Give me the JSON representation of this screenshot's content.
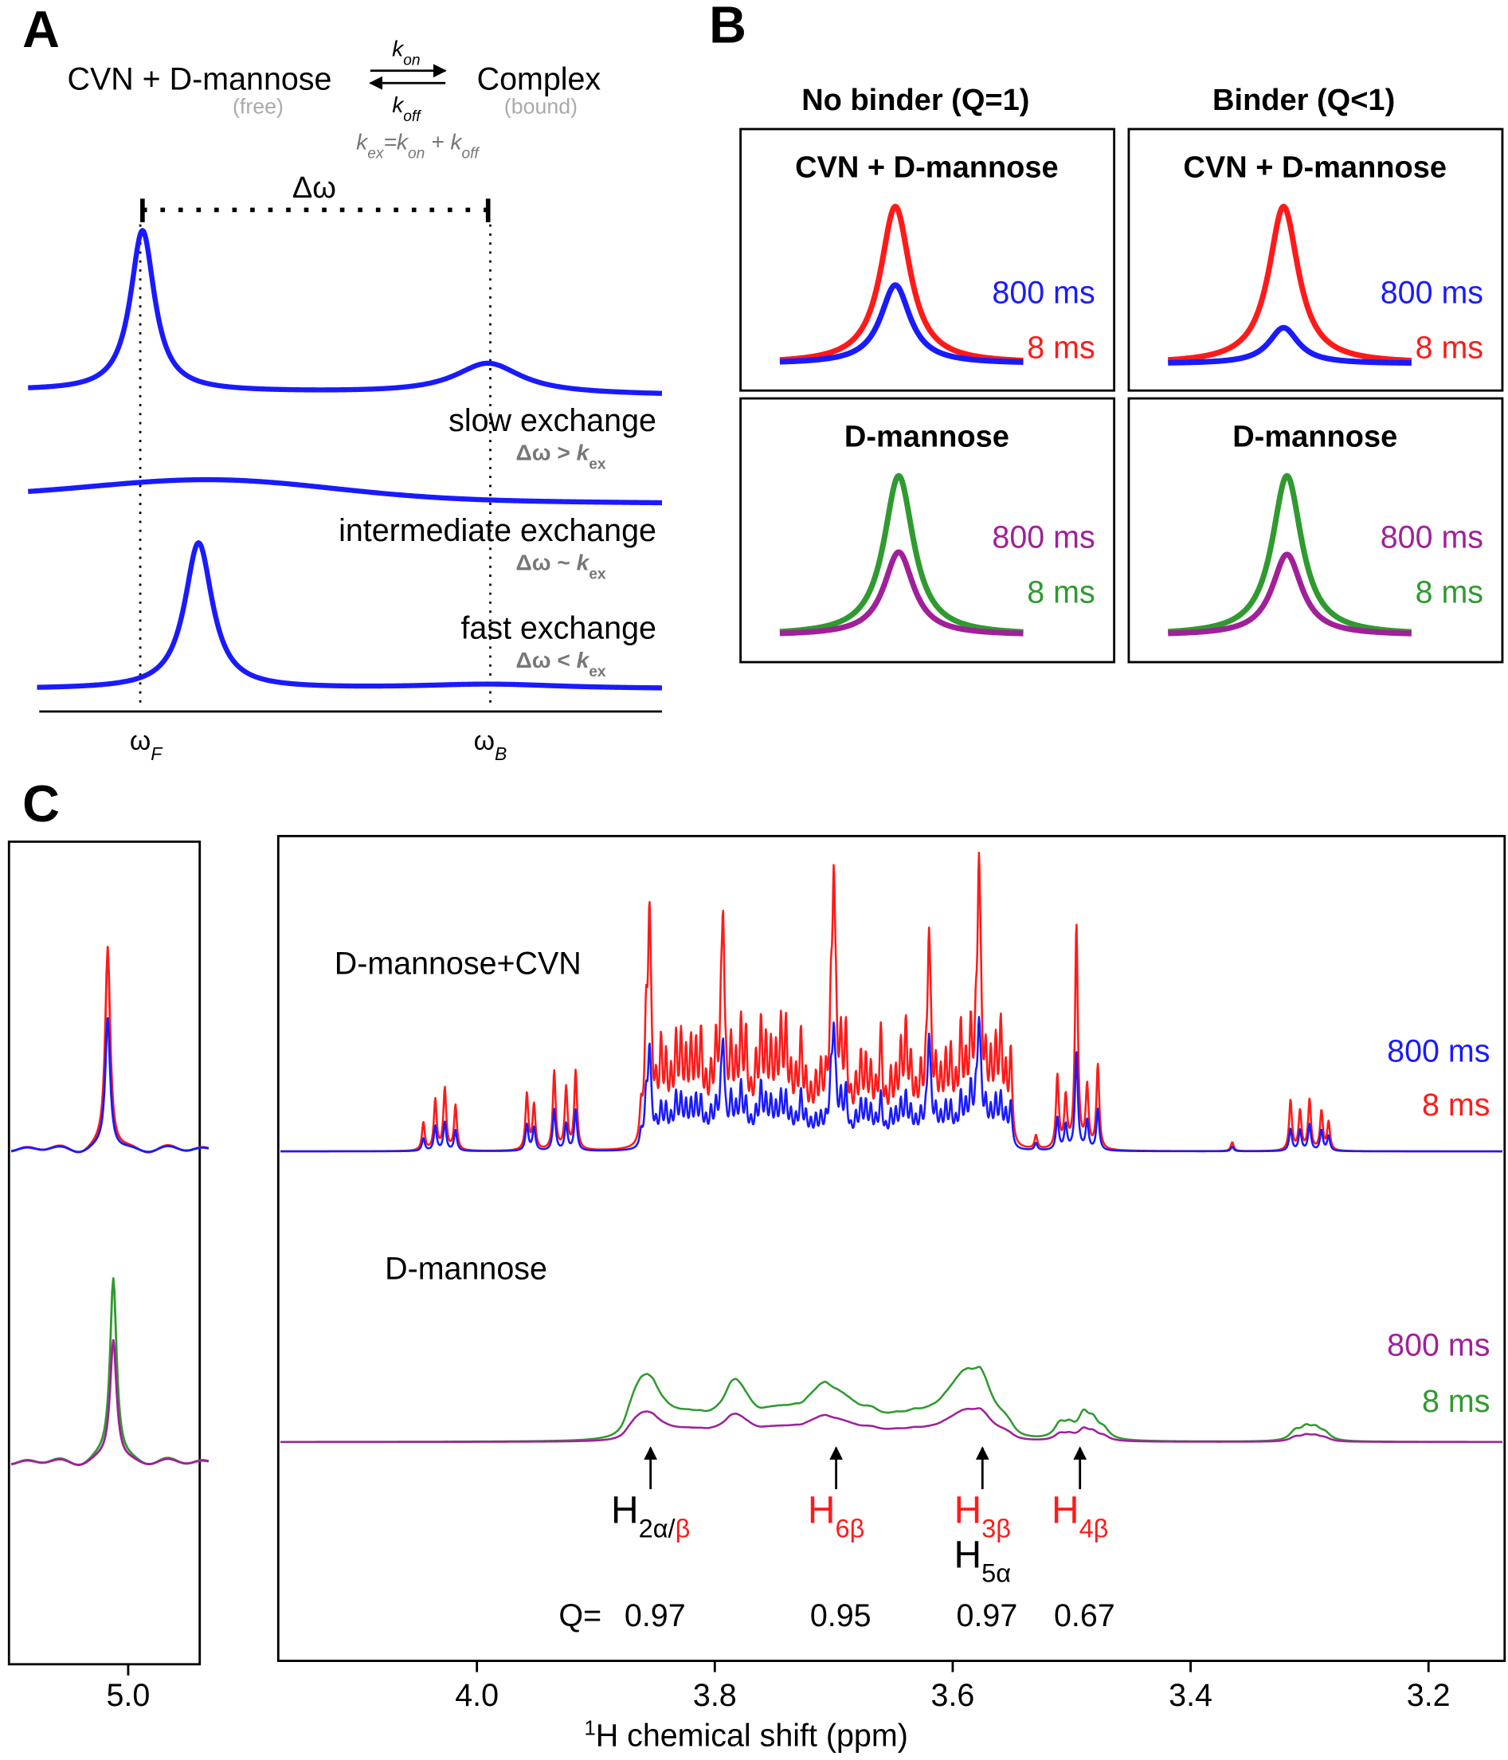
{
  "panel_a": {
    "label": "A",
    "reactant": "CVN + D-mannose",
    "reactant_state": "(free)",
    "product": "Complex",
    "product_state": "(bound)",
    "k_on": [
      "k",
      "on"
    ],
    "k_off": [
      "k",
      "off"
    ],
    "k_ex": [
      "k",
      "ex",
      "=",
      "k",
      "on",
      " + ",
      "k",
      "off"
    ],
    "delta": "Δω",
    "regimes": [
      {
        "name": "slow exchange",
        "cond": [
          "Δω > ",
          "k",
          "ex"
        ]
      },
      {
        "name": "intermediate exchange",
        "cond": [
          "Δω ~ ",
          "k",
          "ex"
        ]
      },
      {
        "name": "fast exchange",
        "cond": [
          "Δω < ",
          "k",
          "ex"
        ]
      }
    ],
    "omega_f": [
      "ω",
      "F"
    ],
    "omega_b": [
      "ω",
      "B"
    ]
  },
  "panel_b": {
    "label": "B",
    "columns": [
      {
        "title": "No binder (Q=1)",
        "boxes": [
          {
            "title": "CVN + D-mannose",
            "legend": [
              {
                "text": "800 ms",
                "color": "#1a1aff"
              },
              {
                "text": "8 ms",
                "color": "#ff1a1a"
              }
            ]
          },
          {
            "title": "D-mannose",
            "legend": [
              {
                "text": "800 ms",
                "color": "#a0209a"
              },
              {
                "text": "8 ms",
                "color": "#2f9a2f"
              }
            ]
          }
        ]
      },
      {
        "title": "Binder (Q<1)",
        "boxes": [
          {
            "title": "CVN + D-mannose",
            "legend": [
              {
                "text": "800 ms",
                "color": "#1a1aff"
              },
              {
                "text": "8 ms",
                "color": "#ff1a1a"
              }
            ]
          },
          {
            "title": "D-mannose",
            "legend": [
              {
                "text": "800 ms",
                "color": "#a0209a"
              },
              {
                "text": "8 ms",
                "color": "#2f9a2f"
              }
            ]
          }
        ]
      }
    ]
  },
  "panel_c": {
    "label": "C",
    "traces": [
      {
        "name": "D-mannose+CVN",
        "legend": [
          {
            "text": "800 ms",
            "color": "#1a1aff"
          },
          {
            "text": "8 ms",
            "color": "#ff1a1a"
          }
        ]
      },
      {
        "name": "D-mannose",
        "legend": [
          {
            "text": "800 ms",
            "color": "#a0209a"
          },
          {
            "text": "8 ms",
            "color": "#2f9a2f"
          }
        ]
      }
    ],
    "peaks": [
      {
        "shift": 3.854,
        "q": 0.97,
        "color": "#000000",
        "label": [
          {
            "text": "H"
          },
          {
            "text": "2α/",
            "sub": true
          },
          {
            "text": "β",
            "sub": true,
            "color": "#ff1a1a"
          }
        ]
      },
      {
        "shift": 3.698,
        "q": 0.95,
        "color": "#ff1a1a",
        "label": [
          {
            "text": "H"
          },
          {
            "text": "6β",
            "sub": true
          }
        ]
      },
      {
        "shift": 3.575,
        "q": 0.97,
        "color": "#ff1a1a",
        "label": [
          {
            "text": "H"
          },
          {
            "text": "3β",
            "sub": true
          }
        ],
        "extra": [
          {
            "text": "H"
          },
          {
            "text": "5α",
            "sub": true
          }
        ]
      },
      {
        "shift": 3.493,
        "q": 0.67,
        "color": "#ff1a1a",
        "label": [
          {
            "text": "H"
          },
          {
            "text": "4β",
            "sub": true
          }
        ]
      }
    ],
    "q_prefix": "Q=",
    "xlim": [
      4.167,
      3.136
    ],
    "xticks": [
      {
        "value": 4,
        "label": "4.0"
      },
      {
        "value": 3.8,
        "label": "3.8"
      },
      {
        "value": 3.6,
        "label": "3.6"
      },
      {
        "value": 3.4,
        "label": "3.4"
      },
      {
        "value": 3.2,
        "label": "3.2"
      }
    ],
    "inset_xlim": [
      5.15,
      4.91
    ],
    "inset_xticks": [
      {
        "value": 5,
        "label": "5.0"
      }
    ],
    "xlabel": [
      "1",
      "H chemical shift (ppm)"
    ]
  }
}
